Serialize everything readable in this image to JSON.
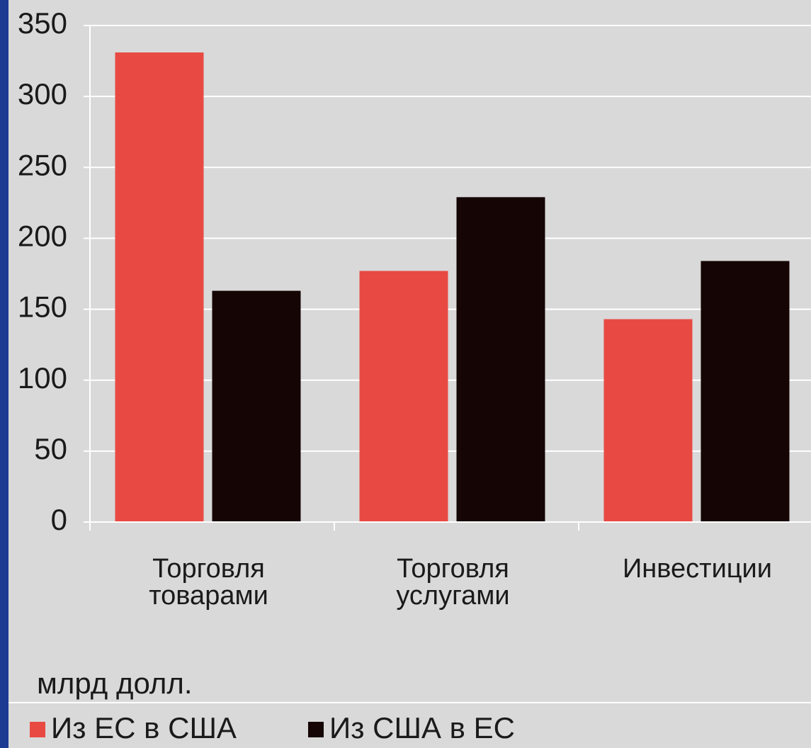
{
  "chart_data": {
    "type": "bar",
    "categories": [
      "Торговля товарами",
      "Торговля услугами",
      "Инвестиции"
    ],
    "series": [
      {
        "name": "Из ЕС в США",
        "color": "#e84a43",
        "values": [
          331,
          177,
          143
        ]
      },
      {
        "name": "Из США в ЕС",
        "color": "#150505",
        "values": [
          163,
          229,
          184
        ]
      }
    ],
    "ylim": [
      0,
      350
    ],
    "yticks": [
      0,
      50,
      100,
      150,
      200,
      250,
      300,
      350
    ],
    "unit_label": "млрд долл.",
    "grid": true
  }
}
